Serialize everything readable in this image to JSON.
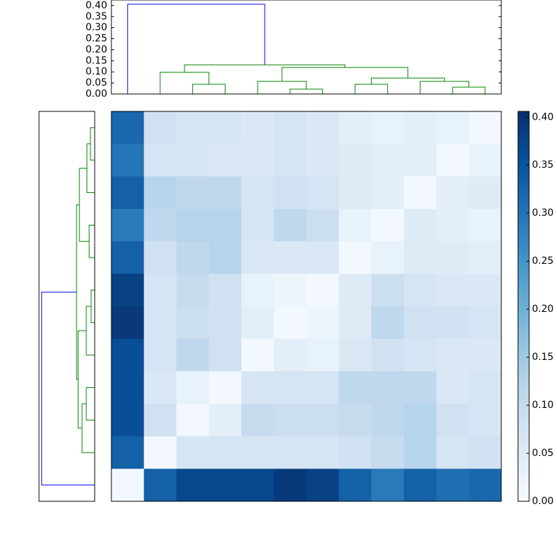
{
  "chart_data": {
    "type": "clustered-heatmap",
    "colormap": "Blues",
    "clim": [
      0,
      0.406
    ],
    "cticks": [
      {
        "value": 0,
        "label": "0.00"
      },
      {
        "value": 0.05,
        "label": "0.05"
      },
      {
        "value": 0.1,
        "label": "0.10"
      },
      {
        "value": 0.15,
        "label": "0.15"
      },
      {
        "value": 0.2,
        "label": "0.20"
      },
      {
        "value": 0.25,
        "label": "0.25"
      },
      {
        "value": 0.3,
        "label": "0.30"
      },
      {
        "value": 0.35,
        "label": "0.35"
      },
      {
        "value": 0.4,
        "label": "0.40"
      }
    ],
    "matrix": [
      [
        0.32,
        0.08,
        0.07,
        0.07,
        0.06,
        0.07,
        0.06,
        0.04,
        0.03,
        0.04,
        0.03,
        0.01
      ],
      [
        0.3,
        0.07,
        0.07,
        0.06,
        0.06,
        0.07,
        0.06,
        0.05,
        0.04,
        0.04,
        0.01,
        0.03
      ],
      [
        0.33,
        0.12,
        0.11,
        0.11,
        0.07,
        0.08,
        0.07,
        0.05,
        0.04,
        0.01,
        0.04,
        0.05
      ],
      [
        0.29,
        0.11,
        0.12,
        0.12,
        0.07,
        0.11,
        0.09,
        0.03,
        0.01,
        0.05,
        0.04,
        0.03
      ],
      [
        0.33,
        0.08,
        0.11,
        0.12,
        0.06,
        0.06,
        0.06,
        0.01,
        0.03,
        0.05,
        0.05,
        0.04
      ],
      [
        0.38,
        0.07,
        0.1,
        0.08,
        0.03,
        0.02,
        0.01,
        0.05,
        0.09,
        0.07,
        0.06,
        0.06
      ],
      [
        0.39,
        0.07,
        0.09,
        0.08,
        0.04,
        0.01,
        0.02,
        0.05,
        0.11,
        0.08,
        0.08,
        0.07
      ],
      [
        0.36,
        0.07,
        0.11,
        0.08,
        0.01,
        0.04,
        0.03,
        0.06,
        0.08,
        0.07,
        0.06,
        0.06
      ],
      [
        0.36,
        0.06,
        0.03,
        0.01,
        0.07,
        0.07,
        0.07,
        0.11,
        0.11,
        0.11,
        0.06,
        0.07
      ],
      [
        0.36,
        0.08,
        0.01,
        0.04,
        0.1,
        0.09,
        0.09,
        0.1,
        0.11,
        0.12,
        0.08,
        0.07
      ],
      [
        0.33,
        0.01,
        0.07,
        0.07,
        0.07,
        0.07,
        0.07,
        0.08,
        0.1,
        0.12,
        0.07,
        0.08
      ],
      [
        0.01,
        0.33,
        0.37,
        0.37,
        0.37,
        0.39,
        0.38,
        0.33,
        0.29,
        0.33,
        0.31,
        0.32
      ]
    ],
    "top_dendrogram": {
      "ylim": [
        0,
        0.425
      ],
      "yticks": [
        {
          "value": 0,
          "label": "0.00"
        },
        {
          "value": 0.05,
          "label": "0.05"
        },
        {
          "value": 0.1,
          "label": "0.10"
        },
        {
          "value": 0.15,
          "label": "0.15"
        },
        {
          "value": 0.2,
          "label": "0.20"
        },
        {
          "value": 0.25,
          "label": "0.25"
        },
        {
          "value": 0.3,
          "label": "0.30"
        },
        {
          "value": 0.35,
          "label": "0.35"
        },
        {
          "value": 0.4,
          "label": "0.40"
        }
      ],
      "links": [
        {
          "left": 2,
          "right": 3,
          "height": 0.044,
          "color": "#008000"
        },
        {
          "left": 1,
          "right": 12,
          "height": 0.098,
          "color": "#008000"
        },
        {
          "left": 5,
          "right": 6,
          "height": 0.022,
          "color": "#008000"
        },
        {
          "left": 4,
          "right": 14,
          "height": 0.057,
          "color": "#008000"
        },
        {
          "left": 7,
          "right": 8,
          "height": 0.044,
          "color": "#008000"
        },
        {
          "left": 10,
          "right": 11,
          "height": 0.031,
          "color": "#008000"
        },
        {
          "left": 9,
          "right": 17,
          "height": 0.057,
          "color": "#008000"
        },
        {
          "left": 16,
          "right": 18,
          "height": 0.072,
          "color": "#008000"
        },
        {
          "left": 15,
          "right": 19,
          "height": 0.12,
          "color": "#008000"
        },
        {
          "left": 13,
          "right": 20,
          "height": 0.132,
          "color": "#008000"
        },
        {
          "left": 0,
          "right": 21,
          "height": 0.406,
          "color": "#0000ff"
        }
      ]
    },
    "left_dendrogram": {
      "xlim": [
        0.252,
        0
      ],
      "links": [
        {
          "left": 0,
          "right": 1,
          "height": 0.019,
          "color": "#008000"
        },
        {
          "left": 12,
          "right": 2,
          "height": 0.035,
          "color": "#008000"
        },
        {
          "left": 3,
          "right": 4,
          "height": 0.025,
          "color": "#008000"
        },
        {
          "left": 5,
          "right": 6,
          "height": 0.016,
          "color": "#008000"
        },
        {
          "left": 15,
          "right": 7,
          "height": 0.038,
          "color": "#008000"
        },
        {
          "left": 13,
          "right": 14,
          "height": 0.069,
          "color": "#008000"
        },
        {
          "left": 8,
          "right": 9,
          "height": 0.038,
          "color": "#008000"
        },
        {
          "left": 18,
          "right": 10,
          "height": 0.057,
          "color": "#008000"
        },
        {
          "left": 16,
          "right": 19,
          "height": 0.075,
          "color": "#008000"
        },
        {
          "left": 17,
          "right": 20,
          "height": 0.082,
          "color": "#008000"
        },
        {
          "left": 21,
          "right": 11,
          "height": 0.24,
          "color": "#0000ff"
        }
      ]
    }
  }
}
